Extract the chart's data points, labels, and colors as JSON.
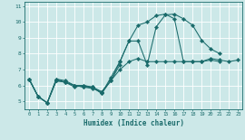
{
  "xlabel": "Humidex (Indice chaleur)",
  "bg_color": "#cce8e8",
  "grid_color": "#ffffff",
  "line_color": "#1a6b6b",
  "marker_color": "#1a6b6b",
  "xlim": [
    -0.5,
    23.5
  ],
  "ylim": [
    4.5,
    11.3
  ],
  "yticks": [
    5,
    6,
    7,
    8,
    9,
    10,
    11
  ],
  "xticks": [
    0,
    1,
    2,
    3,
    4,
    5,
    6,
    7,
    8,
    9,
    10,
    11,
    12,
    13,
    14,
    15,
    16,
    17,
    18,
    19,
    20,
    21,
    22,
    23
  ],
  "series": [
    {
      "x": [
        0,
        1,
        2,
        3,
        4,
        5,
        6,
        7,
        8,
        9,
        10,
        11,
        12,
        13,
        14,
        15,
        16,
        17,
        18,
        19,
        20,
        21
      ],
      "y": [
        6.4,
        5.3,
        4.9,
        6.4,
        6.2,
        6.0,
        5.9,
        5.8,
        5.6,
        6.3,
        7.5,
        8.8,
        8.8,
        7.3,
        9.7,
        10.45,
        10.5,
        10.2,
        9.8,
        8.85,
        8.3,
        8.0
      ]
    },
    {
      "x": [
        0,
        1,
        2,
        3,
        4,
        5,
        6,
        7,
        8,
        9,
        10
      ],
      "y": [
        6.4,
        5.3,
        4.9,
        6.4,
        6.3,
        6.0,
        5.9,
        5.9,
        5.6,
        6.3,
        7.3
      ]
    },
    {
      "x": [
        0,
        1,
        2,
        3,
        4,
        5,
        6,
        7,
        8,
        9,
        10,
        11,
        12,
        13,
        14,
        15,
        16,
        17,
        18,
        19,
        20,
        21
      ],
      "y": [
        6.4,
        5.3,
        4.9,
        6.3,
        6.2,
        5.9,
        6.0,
        5.9,
        5.5,
        6.5,
        7.5,
        8.8,
        9.8,
        10.0,
        10.4,
        10.5,
        10.2,
        7.5,
        7.5,
        7.5,
        7.6,
        7.5
      ]
    },
    {
      "x": [
        0,
        1,
        2,
        3,
        4,
        5,
        6,
        7,
        8,
        9,
        10,
        11,
        12,
        13,
        14,
        15,
        16,
        17,
        18,
        19,
        20,
        21,
        22,
        23
      ],
      "y": [
        6.4,
        5.3,
        4.9,
        6.3,
        6.2,
        6.0,
        6.0,
        5.85,
        5.5,
        6.3,
        7.0,
        7.5,
        7.7,
        7.5,
        7.5,
        7.5,
        7.5,
        7.5,
        7.5,
        7.5,
        7.7,
        7.6,
        7.5,
        7.6
      ]
    }
  ]
}
